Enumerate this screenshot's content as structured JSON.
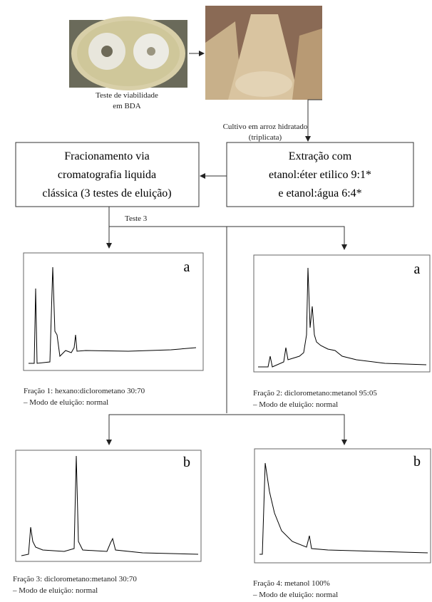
{
  "images": [
    {
      "caption": [
        "Teste de viabilidade",
        "em BDA"
      ]
    },
    {
      "caption": [
        "Cultivo em arroz hidratado",
        "(triplicata)"
      ]
    }
  ],
  "boxes": [
    {
      "lines": [
        "Fracionamento via",
        "cromatografia liquida",
        "clássica (3 testes de eluição)"
      ]
    },
    {
      "lines": [
        "Extração com",
        "etanol:éter etilico 9:1*",
        "e etanol:água 6:4*"
      ]
    }
  ],
  "branch_label": "Teste 3",
  "panels": [
    {
      "label": "a",
      "caption": [
        "Fração 1: hexano:diclorometano 30:70",
        "– Modo de eluição: normal"
      ]
    },
    {
      "label": "a",
      "caption": [
        "Fração 2: diclorometano:metanol 95:05",
        "– Modo de eluição: normal"
      ]
    },
    {
      "label": "b",
      "caption": [
        "Fração 3: diclorometano:metanol 30:70",
        "– Modo de eluição: normal"
      ]
    },
    {
      "label": "b",
      "caption": [
        "Fração 4: metanol 100%",
        "– Modo de eluição: normal"
      ]
    }
  ]
}
